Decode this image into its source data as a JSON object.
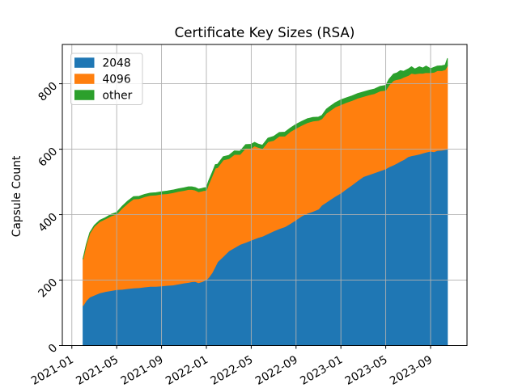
{
  "figure": {
    "background": "#ffffff"
  },
  "chart_data": {
    "type": "area",
    "stacked": true,
    "title": "Certificate Key Sizes (RSA)",
    "xlabel": "",
    "ylabel": "Capsule Count",
    "grid": true,
    "grid_color": "#b0b0b0",
    "spine_color": "#000000",
    "legend_position": "upper left",
    "x_unit": "months since 2021-01",
    "xlim": [
      -0.85,
      35.25
    ],
    "ylim": [
      0,
      920
    ],
    "xticks": [
      {
        "pos": 0,
        "label": "2021-01"
      },
      {
        "pos": 4,
        "label": "2021-05"
      },
      {
        "pos": 8,
        "label": "2021-09"
      },
      {
        "pos": 12,
        "label": "2022-01"
      },
      {
        "pos": 16,
        "label": "2022-05"
      },
      {
        "pos": 20,
        "label": "2022-09"
      },
      {
        "pos": 24,
        "label": "2023-01"
      },
      {
        "pos": 28,
        "label": "2023-05"
      },
      {
        "pos": 32,
        "label": "2023-09"
      }
    ],
    "yticks": [
      {
        "pos": 0,
        "label": "0"
      },
      {
        "pos": 200,
        "label": "200"
      },
      {
        "pos": 400,
        "label": "400"
      },
      {
        "pos": 600,
        "label": "600"
      },
      {
        "pos": 800,
        "label": "800"
      }
    ],
    "x": [
      1.0,
      1.3,
      1.6,
      2.0,
      2.5,
      3.0,
      3.5,
      4.0,
      4.5,
      5.0,
      5.5,
      6.0,
      6.5,
      7.0,
      7.5,
      8.0,
      8.5,
      9.0,
      9.5,
      10.0,
      10.4,
      10.7,
      11.0,
      11.3,
      11.6,
      11.8,
      12.0,
      12.2,
      12.5,
      12.8,
      13.0,
      13.5,
      14.0,
      14.5,
      15.0,
      15.5,
      16.0,
      16.3,
      16.6,
      17.0,
      17.5,
      18.0,
      18.5,
      19.0,
      19.5,
      20.0,
      20.5,
      21.0,
      21.5,
      22.0,
      22.3,
      22.7,
      23.0,
      23.5,
      24.0,
      24.5,
      25.0,
      25.5,
      26.0,
      26.5,
      27.0,
      27.5,
      28.0,
      28.3,
      28.7,
      29.0,
      29.3,
      29.6,
      30.0,
      30.3,
      30.6,
      31.0,
      31.3,
      31.6,
      32.0,
      32.3,
      32.6,
      33.0,
      33.3,
      33.5
    ],
    "series": [
      {
        "name": "2048",
        "color": "#1f77b4",
        "values": [
          122,
          138,
          148,
          154,
          161,
          165,
          168,
          171,
          172,
          174,
          176,
          177,
          179,
          181,
          181,
          182,
          184,
          185,
          188,
          191,
          193,
          195,
          196,
          192,
          195,
          198,
          201,
          208,
          222,
          242,
          256,
          272,
          289,
          299,
          309,
          315,
          322,
          326,
          330,
          334,
          342,
          350,
          357,
          363,
          373,
          384,
          396,
          404,
          410,
          417,
          429,
          438,
          445,
          456,
          466,
          479,
          491,
          504,
          516,
          522,
          528,
          534,
          540,
          546,
          552,
          557,
          563,
          568,
          577,
          580,
          582,
          585,
          588,
          591,
          594,
          592,
          596,
          597,
          599,
          600
        ]
      },
      {
        "name": "4096",
        "color": "#ff7f0e",
        "values": [
          143,
          172,
          195,
          210,
          218,
          222,
          228,
          231,
          248,
          261,
          272,
          272,
          276,
          278,
          279,
          281,
          280,
          282,
          283,
          283,
          284,
          282,
          279,
          278,
          277,
          276,
          273,
          285,
          295,
          300,
          288,
          295,
          282,
          285,
          275,
          288,
          281,
          284,
          276,
          268,
          281,
          277,
          283,
          277,
          281,
          280,
          277,
          277,
          276,
          271,
          264,
          272,
          272,
          273,
          270,
          264,
          258,
          252,
          245,
          244,
          242,
          244,
          240,
          250,
          258,
          256,
          252,
          252,
          248,
          252,
          248,
          247,
          244,
          243,
          240,
          243,
          244,
          243,
          244,
          255
        ]
      },
      {
        "name": "other",
        "color": "#2ca02c",
        "values": [
          0,
          0,
          2,
          3,
          4,
          4,
          5,
          5,
          6,
          7,
          7,
          7,
          7,
          7,
          7,
          7,
          8,
          8,
          8,
          8,
          8,
          8,
          8,
          8,
          8,
          8,
          9,
          10,
          10,
          11,
          10,
          10,
          10,
          11,
          10,
          11,
          12,
          11,
          10,
          10,
          11,
          12,
          11,
          12,
          11,
          12,
          12,
          12,
          11,
          10,
          10,
          12,
          13,
          13,
          15,
          14,
          14,
          14,
          14,
          14,
          14,
          14,
          15,
          18,
          20,
          20,
          25,
          18,
          20,
          20,
          15,
          20,
          16,
          20,
          12,
          15,
          14,
          15,
          14,
          22
        ]
      }
    ],
    "legend": [
      {
        "label": "2048",
        "color": "#1f77b4"
      },
      {
        "label": "4096",
        "color": "#ff7f0e"
      },
      {
        "label": "other",
        "color": "#2ca02c"
      }
    ]
  }
}
